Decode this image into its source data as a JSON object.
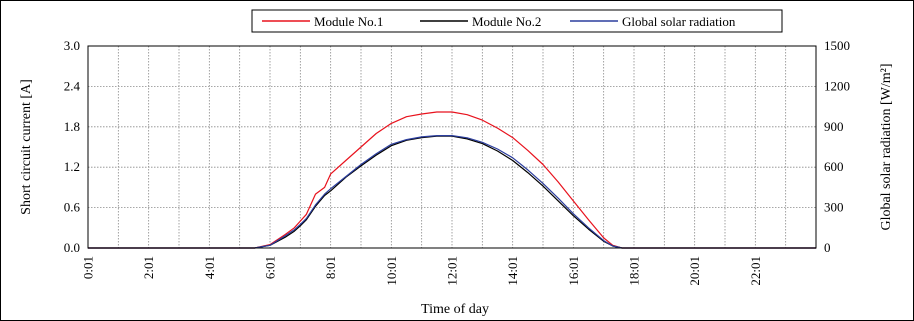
{
  "chart_data": {
    "type": "line",
    "xlabel": "Time of day",
    "ylabel_left": "Short circuit current [A]",
    "ylabel_right": "Global solar radiation [W/m²]",
    "x_range_hours": [
      0,
      24
    ],
    "ylim_left": [
      0,
      3.0
    ],
    "ylim_right": [
      0,
      1500
    ],
    "left_ticks": [
      "0.0",
      "0.6",
      "1.2",
      "1.8",
      "2.4",
      "3.0"
    ],
    "right_ticks": [
      "0",
      "300",
      "600",
      "900",
      "1200",
      "1500"
    ],
    "x_tick_labels": [
      "0:01",
      "2:01",
      "4:01",
      "6:01",
      "8:01",
      "10:01",
      "12:01",
      "14:01",
      "16:01",
      "18:01",
      "20:01",
      "22:01"
    ],
    "grid": true,
    "legend_position": "top",
    "series": [
      {
        "name": "Module No.1",
        "color": "#e8121d",
        "axis": "left",
        "x": [
          0,
          5.5,
          6.0,
          6.5,
          6.8,
          7.0,
          7.2,
          7.5,
          7.8,
          8.0,
          8.5,
          9.0,
          9.5,
          10.0,
          10.5,
          11.0,
          11.5,
          12.0,
          12.5,
          13.0,
          13.5,
          14.0,
          14.5,
          15.0,
          15.5,
          16.0,
          16.5,
          17.0,
          17.3,
          17.6,
          18.0,
          24
        ],
        "values": [
          0,
          0,
          0.05,
          0.2,
          0.3,
          0.4,
          0.5,
          0.8,
          0.9,
          1.1,
          1.3,
          1.5,
          1.7,
          1.85,
          1.95,
          1.99,
          2.02,
          2.02,
          1.98,
          1.9,
          1.78,
          1.64,
          1.45,
          1.24,
          0.98,
          0.7,
          0.42,
          0.15,
          0.04,
          0,
          0,
          0
        ]
      },
      {
        "name": "Module No.2",
        "color": "#000000",
        "axis": "left",
        "x": [
          0,
          5.5,
          6.0,
          6.5,
          6.8,
          7.0,
          7.2,
          7.5,
          7.8,
          8.0,
          8.5,
          9.0,
          9.5,
          10.0,
          10.5,
          11.0,
          11.5,
          12.0,
          12.5,
          13.0,
          13.5,
          14.0,
          14.5,
          15.0,
          15.5,
          16.0,
          16.5,
          17.0,
          17.3,
          17.6,
          18.0,
          24
        ],
        "values": [
          0,
          0,
          0.04,
          0.16,
          0.25,
          0.33,
          0.42,
          0.62,
          0.78,
          0.85,
          1.05,
          1.22,
          1.38,
          1.52,
          1.6,
          1.64,
          1.66,
          1.66,
          1.62,
          1.55,
          1.44,
          1.3,
          1.12,
          0.92,
          0.7,
          0.48,
          0.28,
          0.1,
          0.03,
          0,
          0,
          0
        ]
      },
      {
        "name": "Global solar radiation",
        "color": "#2c3e9e",
        "axis": "right",
        "x": [
          0,
          5.5,
          6.0,
          6.5,
          6.8,
          7.0,
          7.2,
          7.5,
          7.8,
          8.0,
          8.5,
          9.0,
          9.5,
          10.0,
          10.5,
          11.0,
          11.5,
          12.0,
          12.5,
          13.0,
          13.5,
          14.0,
          14.5,
          15.0,
          15.5,
          16.0,
          16.5,
          17.0,
          17.3,
          17.6,
          18.0,
          24
        ],
        "values": [
          0,
          0,
          20,
          90,
          135,
          175,
          220,
          320,
          400,
          440,
          530,
          620,
          700,
          770,
          805,
          825,
          835,
          835,
          818,
          785,
          735,
          670,
          580,
          480,
          370,
          255,
          150,
          55,
          15,
          0,
          0,
          0
        ]
      }
    ]
  }
}
